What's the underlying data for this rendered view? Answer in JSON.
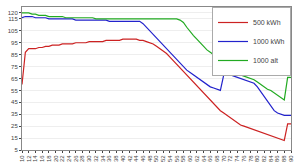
{
  "chart_data": {
    "type": "line",
    "x": [
      10,
      11,
      12,
      13,
      14,
      15,
      16,
      17,
      18,
      19,
      20,
      21,
      22,
      23,
      24,
      25,
      26,
      27,
      28,
      29,
      30,
      31,
      32,
      33,
      34,
      35,
      36,
      37,
      38,
      39,
      40,
      41,
      42,
      43,
      44,
      45,
      46,
      47,
      48,
      49,
      50,
      51,
      52,
      53,
      54,
      55,
      56,
      57,
      58,
      59,
      60,
      61,
      62,
      63,
      64,
      65,
      66,
      67,
      68,
      69,
      70,
      71,
      72,
      73,
      74,
      75,
      76,
      77,
      78,
      79,
      80,
      81,
      82,
      83,
      84,
      85,
      86,
      87,
      88,
      89,
      90
    ],
    "series": [
      {
        "name": "500 kWh",
        "color": "#cc2222",
        "values": [
          60,
          87,
          90,
          90,
          90,
          91,
          91,
          92,
          92,
          93,
          93,
          93,
          94,
          94,
          94,
          94,
          95,
          95,
          95,
          95,
          96,
          96,
          96,
          96,
          96,
          97,
          97,
          97,
          97,
          97,
          98,
          98,
          98,
          98,
          98,
          97,
          97,
          96,
          95,
          94,
          92,
          90,
          88,
          86,
          83,
          80,
          77,
          74,
          71,
          68,
          65,
          62,
          59,
          56,
          53,
          50,
          47,
          44,
          41,
          38,
          36,
          34,
          32,
          30,
          28,
          26,
          25,
          24,
          23,
          22,
          21,
          20,
          19,
          18,
          17,
          16,
          15,
          14,
          13,
          27,
          27
        ]
      },
      {
        "name": "1000 kWh",
        "color": "#2222cc",
        "values": [
          116,
          117,
          117,
          117,
          116,
          116,
          116,
          116,
          115,
          115,
          115,
          115,
          115,
          115,
          115,
          115,
          114,
          114,
          114,
          114,
          114,
          114,
          114,
          114,
          114,
          114,
          113,
          113,
          113,
          113,
          113,
          113,
          113,
          113,
          113,
          113,
          111,
          108,
          105,
          102,
          99,
          96,
          93,
          90,
          87,
          84,
          81,
          78,
          75,
          72,
          70,
          68,
          66,
          64,
          62,
          60,
          58,
          57,
          56,
          55,
          68,
          68,
          68,
          67,
          66,
          65,
          64,
          63,
          62,
          61,
          58,
          54,
          50,
          46,
          42,
          38,
          36,
          35,
          34,
          34,
          34
        ]
      },
      {
        "name": "1000 alt",
        "color": "#22aa22",
        "values": [
          120,
          120,
          120,
          119,
          119,
          118,
          118,
          118,
          117,
          117,
          117,
          117,
          117,
          116,
          116,
          116,
          116,
          116,
          116,
          116,
          116,
          116,
          115,
          115,
          115,
          115,
          115,
          115,
          115,
          115,
          115,
          115,
          115,
          115,
          115,
          115,
          115,
          115,
          115,
          115,
          115,
          115,
          115,
          115,
          115,
          115,
          115,
          114,
          112,
          108,
          104,
          101,
          98,
          95,
          92,
          89,
          87,
          85,
          82,
          80,
          78,
          76,
          74,
          72,
          70,
          68,
          67,
          66,
          65,
          64,
          62,
          60,
          58,
          56,
          55,
          53,
          51,
          49,
          47,
          66,
          66
        ]
      }
    ],
    "xlim": [
      10,
      90
    ],
    "xticks": [
      10,
      12,
      14,
      16,
      18,
      20,
      22,
      24,
      26,
      28,
      30,
      32,
      34,
      36,
      38,
      40,
      42,
      44,
      46,
      48,
      50,
      52,
      54,
      56,
      58,
      60,
      62,
      64,
      66,
      68,
      70,
      72,
      74,
      76,
      78,
      80,
      82,
      84,
      86,
      88,
      90
    ],
    "ylim": [
      5,
      125
    ],
    "yticks": [
      5,
      15,
      25,
      35,
      45,
      55,
      65,
      75,
      85,
      95,
      105,
      115,
      120
    ],
    "grid": "y",
    "legend": "upper right"
  }
}
